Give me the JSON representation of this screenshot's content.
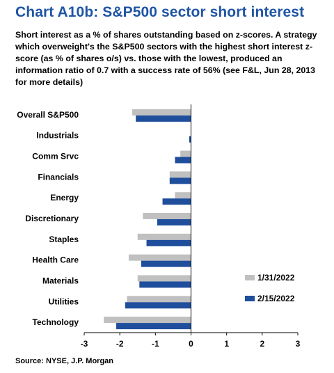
{
  "title": "Chart A10b: S&P500 sector short interest",
  "subtitle": "Short interest as a % of shares outstanding based on z-scores. A strategy which overweight's the S&P500 sectors with the highest short interest z-score (as % of shares o/s) vs. those with the lowest, produced an information ratio of 0.7 with a success rate of 56% (see F&L, Jun 28, 2013 for more details)",
  "source": "Source: NYSE, J.P. Morgan",
  "colors": {
    "series1": "#c0c0c0",
    "series2": "#1f4e9c"
  },
  "chart_data": {
    "type": "bar",
    "orientation": "horizontal",
    "categories": [
      "Overall S&P500",
      "Industrials",
      "Comm Srvc",
      "Financials",
      "Energy",
      "Discretionary",
      "Staples",
      "Health Care",
      "Materials",
      "Utilities",
      "Technology"
    ],
    "series": [
      {
        "name": "1/31/2022",
        "values": [
          -1.65,
          0.0,
          -0.3,
          -0.6,
          -0.45,
          -1.35,
          -1.5,
          -1.75,
          -1.5,
          -1.8,
          -2.45
        ]
      },
      {
        "name": "2/15/2022",
        "values": [
          -1.55,
          -0.05,
          -0.45,
          -0.6,
          -0.8,
          -0.95,
          -1.25,
          -1.4,
          -1.45,
          -1.85,
          -2.1
        ]
      }
    ],
    "xlim": [
      -3,
      3
    ],
    "xticks": [
      "-3",
      "-2",
      "-1",
      "0",
      "1",
      "2",
      "3"
    ],
    "legend_position": "bottom-right",
    "grid": false
  }
}
